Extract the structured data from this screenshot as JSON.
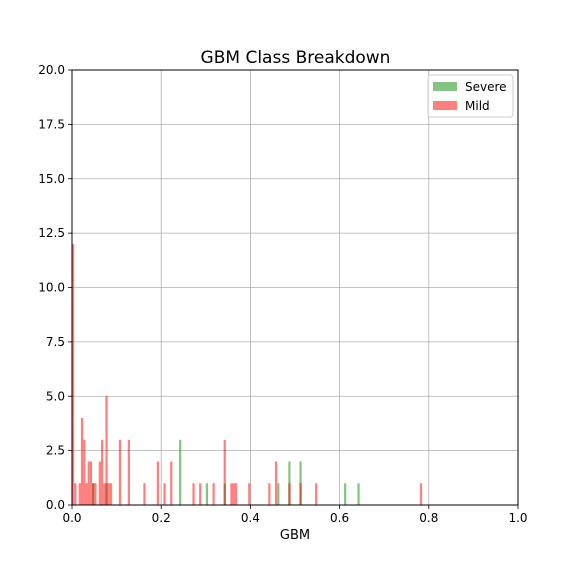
{
  "chart_data": {
    "type": "bar",
    "title": "GBM Class Breakdown",
    "xlabel": "GBM",
    "ylabel": "",
    "xlim": [
      0,
      1
    ],
    "ylim": [
      0,
      20
    ],
    "xticks": [
      "0.0",
      "0.2",
      "0.4",
      "0.6",
      "0.8",
      "1.0"
    ],
    "yticks": [
      "0.0",
      "2.5",
      "5.0",
      "7.5",
      "10.0",
      "12.5",
      "15.0",
      "17.5",
      "20.0"
    ],
    "grid": true,
    "legend_position": "top-right",
    "bin_width": 0.005,
    "series": [
      {
        "name": "Severe",
        "color": "#2ca02c",
        "opacity": 0.6,
        "bins": [
          {
            "x": 0.045,
            "count": 1
          },
          {
            "x": 0.075,
            "count": 1
          },
          {
            "x": 0.24,
            "count": 3
          },
          {
            "x": 0.3,
            "count": 1
          },
          {
            "x": 0.34,
            "count": 1
          },
          {
            "x": 0.46,
            "count": 1
          },
          {
            "x": 0.485,
            "count": 2
          },
          {
            "x": 0.51,
            "count": 2
          },
          {
            "x": 0.61,
            "count": 1
          },
          {
            "x": 0.64,
            "count": 1
          }
        ]
      },
      {
        "name": "Mild",
        "color": "#ff0000",
        "opacity": 0.5,
        "bins": [
          {
            "x": 0.0,
            "count": 12
          },
          {
            "x": 0.005,
            "count": 1
          },
          {
            "x": 0.015,
            "count": 1
          },
          {
            "x": 0.02,
            "count": 4
          },
          {
            "x": 0.025,
            "count": 3
          },
          {
            "x": 0.03,
            "count": 1
          },
          {
            "x": 0.035,
            "count": 2
          },
          {
            "x": 0.04,
            "count": 2
          },
          {
            "x": 0.045,
            "count": 1
          },
          {
            "x": 0.05,
            "count": 1
          },
          {
            "x": 0.06,
            "count": 2
          },
          {
            "x": 0.065,
            "count": 3
          },
          {
            "x": 0.07,
            "count": 1
          },
          {
            "x": 0.075,
            "count": 5
          },
          {
            "x": 0.08,
            "count": 1
          },
          {
            "x": 0.085,
            "count": 1
          },
          {
            "x": 0.105,
            "count": 3
          },
          {
            "x": 0.125,
            "count": 3
          },
          {
            "x": 0.16,
            "count": 1
          },
          {
            "x": 0.19,
            "count": 2
          },
          {
            "x": 0.205,
            "count": 1
          },
          {
            "x": 0.22,
            "count": 2
          },
          {
            "x": 0.27,
            "count": 1
          },
          {
            "x": 0.285,
            "count": 1
          },
          {
            "x": 0.315,
            "count": 1
          },
          {
            "x": 0.34,
            "count": 3
          },
          {
            "x": 0.355,
            "count": 1
          },
          {
            "x": 0.36,
            "count": 1
          },
          {
            "x": 0.365,
            "count": 1
          },
          {
            "x": 0.395,
            "count": 1
          },
          {
            "x": 0.44,
            "count": 1
          },
          {
            "x": 0.455,
            "count": 2
          },
          {
            "x": 0.485,
            "count": 1
          },
          {
            "x": 0.51,
            "count": 1
          },
          {
            "x": 0.545,
            "count": 1
          },
          {
            "x": 0.78,
            "count": 1
          }
        ]
      }
    ]
  }
}
